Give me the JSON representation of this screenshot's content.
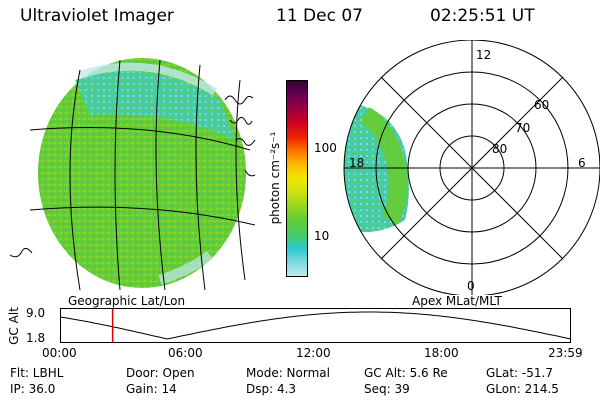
{
  "header": {
    "instrument": "Ultraviolet Imager",
    "date": "11 Dec 07",
    "time": "02:25:51 UT"
  },
  "left_panel": {
    "caption": "Geographic Lat/Lon"
  },
  "right_panel": {
    "caption": "Apex MLat/MLT",
    "mlt_labels": [
      "12",
      "6",
      "0",
      "18"
    ],
    "mlat_labels": [
      "60",
      "70",
      "80"
    ]
  },
  "colorbar": {
    "unit_label": "photon cm⁻²s⁻¹",
    "ticks": [
      "100",
      "10"
    ],
    "colors": [
      "#c0e8ee",
      "#7fd8e0",
      "#2ec8d2",
      "#44cc66",
      "#66cc33",
      "#99d820",
      "#cce010",
      "#f0e800",
      "#ffbb00",
      "#ff7700",
      "#ee2200",
      "#cc0022",
      "#990044",
      "#660055",
      "#330033"
    ]
  },
  "timeline": {
    "axis_label": "GC Alt",
    "y_ticks": [
      "9.0",
      "1.8"
    ],
    "x_ticks": [
      "00:00",
      "06:00",
      "12:00",
      "18:00",
      "23:59"
    ],
    "current_time_hours": 2.43
  },
  "info": {
    "filter": "Flt: LBHL",
    "ip": "IP: 36.0",
    "door": "Door: Open",
    "gain": "Gain: 14",
    "mode": "Mode: Normal",
    "dsp": "Dsp:     4.3",
    "gc_alt": "GC Alt: 5.6 Re",
    "seq": "Seq: 39",
    "glat": "GLat: -51.7",
    "glon": "GLon: 214.5"
  },
  "colors": {
    "aurora_green": "#66cc33",
    "aurora_cyan": "#44ccbb",
    "edge_light": "#bfe8ef",
    "cursor_red": "#dd0000"
  }
}
